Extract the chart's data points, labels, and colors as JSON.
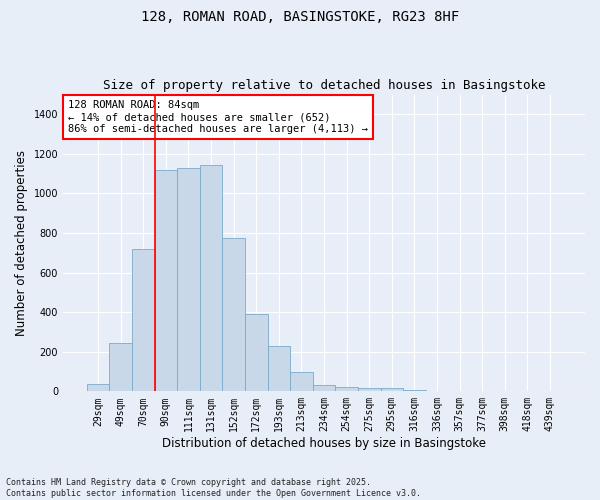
{
  "title": "128, ROMAN ROAD, BASINGSTOKE, RG23 8HF",
  "subtitle": "Size of property relative to detached houses in Basingstoke",
  "xlabel": "Distribution of detached houses by size in Basingstoke",
  "ylabel": "Number of detached properties",
  "categories": [
    "29sqm",
    "49sqm",
    "70sqm",
    "90sqm",
    "111sqm",
    "131sqm",
    "152sqm",
    "172sqm",
    "193sqm",
    "213sqm",
    "234sqm",
    "254sqm",
    "275sqm",
    "295sqm",
    "316sqm",
    "336sqm",
    "357sqm",
    "377sqm",
    "398sqm",
    "418sqm",
    "439sqm"
  ],
  "values": [
    35,
    245,
    720,
    1120,
    1130,
    1145,
    775,
    390,
    230,
    100,
    30,
    22,
    18,
    15,
    5,
    0,
    0,
    0,
    0,
    0,
    0
  ],
  "bar_color": "#c8d8e8",
  "bar_edge_color": "#7aaac8",
  "vline_color": "red",
  "vline_x_index": 2.5,
  "annotation_text": "128 ROMAN ROAD: 84sqm\n← 14% of detached houses are smaller (652)\n86% of semi-detached houses are larger (4,113) →",
  "annotation_box_color": "#ffffff",
  "annotation_box_edge_color": "red",
  "background_color": "#e8eef8",
  "grid_color": "#ffffff",
  "ylim": [
    0,
    1500
  ],
  "yticks": [
    0,
    200,
    400,
    600,
    800,
    1000,
    1200,
    1400
  ],
  "footer": "Contains HM Land Registry data © Crown copyright and database right 2025.\nContains public sector information licensed under the Open Government Licence v3.0.",
  "title_fontsize": 10,
  "subtitle_fontsize": 9,
  "xlabel_fontsize": 8.5,
  "ylabel_fontsize": 8.5,
  "tick_fontsize": 7,
  "annotation_fontsize": 7.5,
  "footer_fontsize": 6
}
